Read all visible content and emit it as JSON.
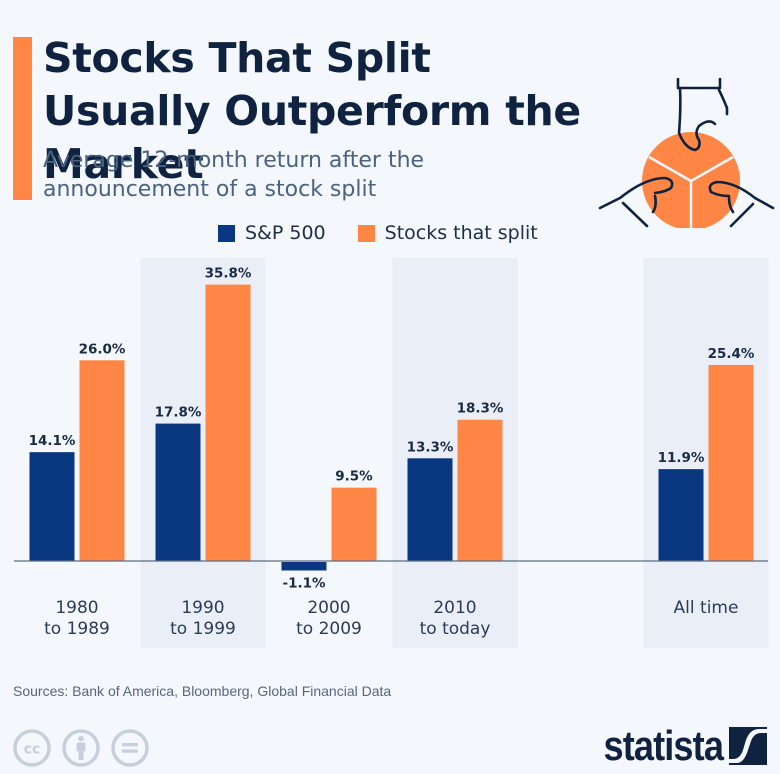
{
  "header": {
    "title": "Stocks That Split Usually Outperform the Market",
    "subtitle": "Average 12-month return after the announcement of a stock split",
    "accent_color": "#ff8645",
    "illustration_icon": "hands-pie-chart-icon"
  },
  "legend": {
    "items": [
      {
        "label": "S&P 500",
        "color": "#0a3880"
      },
      {
        "label": "Stocks that split",
        "color": "#ff8645"
      }
    ]
  },
  "chart_data": {
    "type": "bar",
    "title": "Stocks That Split Usually Outperform the Market",
    "subtitle": "Average 12-month return after the announcement of a stock split",
    "xlabel": "",
    "ylabel": "",
    "unit": "%",
    "categories": [
      "1980\nto 1989",
      "1990\nto 1999",
      "2000\nto 2009",
      "2010\nto today",
      "All time"
    ],
    "category_lines": [
      [
        "1980",
        "to 1989"
      ],
      [
        "1990",
        "to 1999"
      ],
      [
        "2000",
        "to 2009"
      ],
      [
        "2010",
        "to today"
      ],
      [
        "All time"
      ]
    ],
    "series": [
      {
        "name": "S&P 500",
        "color": "#0a3880",
        "values": [
          14.1,
          17.8,
          -1.1,
          13.3,
          11.9
        ],
        "labels": [
          "14.1%",
          "17.8%",
          "-1.1%",
          "13.3%",
          "11.9%"
        ]
      },
      {
        "name": "Stocks that split",
        "color": "#ff8645",
        "values": [
          26.0,
          35.8,
          9.5,
          18.3,
          25.4
        ],
        "labels": [
          "26.0%",
          "35.8%",
          "9.5%",
          "18.3%",
          "25.4%"
        ]
      }
    ],
    "ylim": [
      -3,
      38
    ],
    "grid": false,
    "legend_position": "top-center",
    "shaded_categories": [
      1,
      3,
      4
    ]
  },
  "footer": {
    "source": "Sources: Bank of America, Bloomberg, Global Financial Data",
    "license_icons": [
      "cc-icon",
      "attribution-icon",
      "no-derivatives-icon"
    ],
    "brand": "statista"
  }
}
